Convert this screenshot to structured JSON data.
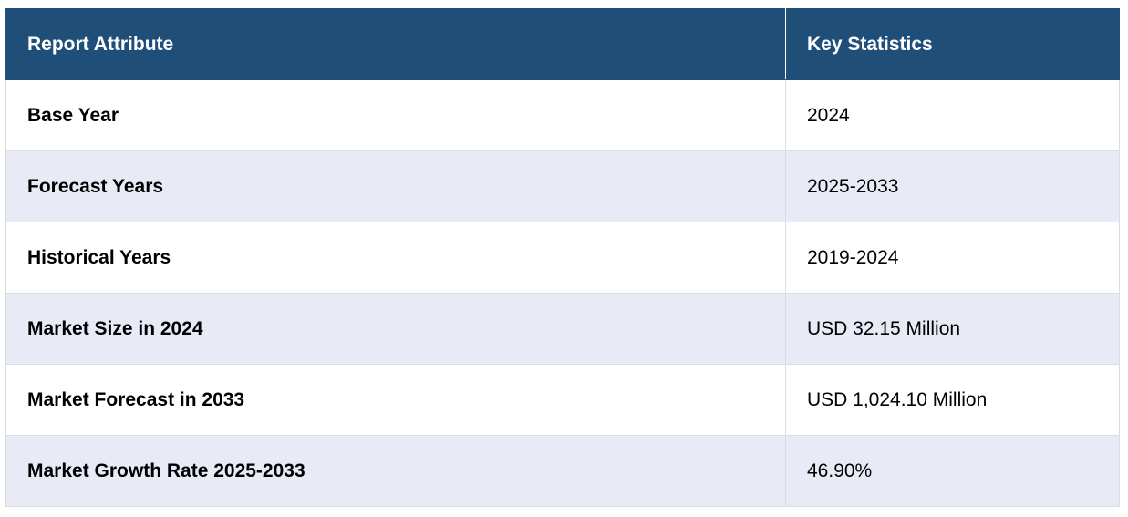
{
  "table": {
    "headers": {
      "attribute": "Report Attribute",
      "value": "Key Statistics"
    },
    "rows": [
      {
        "attribute": "Base Year",
        "value": "2024"
      },
      {
        "attribute": "Forecast Years",
        "value": "2025-2033"
      },
      {
        "attribute": "Historical Years",
        "value": "2019-2024"
      },
      {
        "attribute": "Market Size in 2024",
        "value": "USD 32.15 Million"
      },
      {
        "attribute": "Market Forecast in 2033",
        "value": "USD 1,024.10 Million"
      },
      {
        "attribute": "Market Growth Rate 2025-2033",
        "value": "46.90%"
      }
    ]
  },
  "colors": {
    "header_background": "#1f4e79",
    "header_text": "#ffffff",
    "row_alt_background": "#e8eaf5",
    "border": "#dcdce6"
  }
}
